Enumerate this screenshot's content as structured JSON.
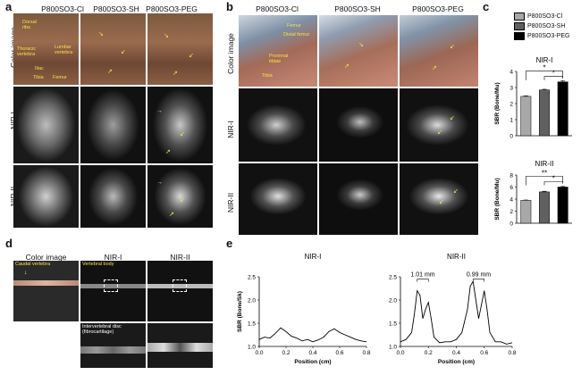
{
  "panel_a": {
    "letter": "a",
    "columns": [
      "P800SO3-Cl",
      "P800SO3-SH",
      "P800SO3-PEG"
    ],
    "rows": [
      "Color image",
      "NIR-I",
      "NIR-II"
    ],
    "annotations": [
      "Dorsal ribs",
      "Thoracic vertebra",
      "Lumbar vertebra",
      "Iliac",
      "Tibia",
      "Femur"
    ]
  },
  "panel_b": {
    "letter": "b",
    "columns": [
      "P800SO3-Cl",
      "P800SO3-SH",
      "P800SO3-PEG"
    ],
    "rows": [
      "Color image",
      "NIR-I",
      "NIR-II"
    ],
    "annotations": [
      "Femur",
      "Distal femur",
      "Proximal tibiae",
      "Tibia"
    ]
  },
  "panel_c": {
    "letter": "c",
    "legend": [
      "P800SO3-Cl",
      "P800SO3-SH",
      "P800SO3-PEG"
    ],
    "colors": [
      "#a8a8a8",
      "#606060",
      "#000000"
    ]
  },
  "panel_d": {
    "letter": "d",
    "columns": [
      "Color image",
      "NIR-I",
      "NIR-II"
    ],
    "annotations": [
      "Caudal vertebra",
      "Vertebral body",
      "Intervertebral disc (fibrocartilage)"
    ]
  },
  "panel_e": {
    "letter": "e"
  },
  "chart_data": [
    {
      "type": "bar",
      "title": "NIR-I",
      "categories": [
        "P800SO3-Cl",
        "P800SO3-SH",
        "P800SO3-PEG"
      ],
      "values": [
        2.45,
        2.85,
        3.35
      ],
      "errors": [
        0.03,
        0.04,
        0.08
      ],
      "ylabel": "SBR (Bone/Mu)",
      "ylim": [
        0,
        4
      ],
      "yticks": [
        0,
        1,
        2,
        3,
        4
      ],
      "significance": [
        "*",
        "*"
      ]
    },
    {
      "type": "bar",
      "title": "NIR-II",
      "categories": [
        "P800SO3-Cl",
        "P800SO3-SH",
        "P800SO3-PEG"
      ],
      "values": [
        3.8,
        5.2,
        6.0
      ],
      "errors": [
        0.05,
        0.1,
        0.1
      ],
      "ylabel": "SBR (Bone/Mu)",
      "ylim": [
        0,
        8
      ],
      "yticks": [
        0,
        2,
        4,
        6,
        8
      ],
      "significance": [
        "**",
        "*"
      ]
    },
    {
      "type": "line",
      "title": "NIR-I",
      "xlabel": "Position (cm)",
      "ylabel": "SBR (Bone/Sk)",
      "xlim": [
        0,
        0.8
      ],
      "ylim": [
        1.0,
        2.5
      ],
      "xticks": [
        0.0,
        0.2,
        0.4,
        0.6,
        0.8
      ],
      "yticks": [
        1.0,
        1.5,
        2.0,
        2.5
      ],
      "x": [
        0.0,
        0.04,
        0.08,
        0.12,
        0.16,
        0.2,
        0.24,
        0.28,
        0.32,
        0.36,
        0.4,
        0.44,
        0.48,
        0.52,
        0.56,
        0.6,
        0.64,
        0.68,
        0.72,
        0.76,
        0.8
      ],
      "y": [
        1.15,
        1.2,
        1.18,
        1.28,
        1.4,
        1.32,
        1.22,
        1.18,
        1.12,
        1.15,
        1.1,
        1.14,
        1.2,
        1.32,
        1.38,
        1.3,
        1.25,
        1.2,
        1.15,
        1.12,
        1.1
      ]
    },
    {
      "type": "line",
      "title": "NIR-II",
      "xlabel": "Position (cm)",
      "xlim": [
        0,
        0.8
      ],
      "ylim": [
        1.0,
        2.5
      ],
      "xticks": [
        0.0,
        0.2,
        0.4,
        0.6,
        0.8
      ],
      "yticks": [
        1.0,
        1.5,
        2.0,
        2.5
      ],
      "annotations": [
        "1.01 mm",
        "0.99 mm"
      ],
      "x": [
        0.0,
        0.04,
        0.08,
        0.1,
        0.12,
        0.14,
        0.16,
        0.18,
        0.2,
        0.22,
        0.24,
        0.28,
        0.32,
        0.36,
        0.4,
        0.44,
        0.48,
        0.5,
        0.52,
        0.54,
        0.56,
        0.58,
        0.6,
        0.62,
        0.64,
        0.68,
        0.72,
        0.76,
        0.8
      ],
      "y": [
        1.1,
        1.15,
        1.3,
        1.7,
        2.2,
        2.1,
        1.6,
        1.8,
        1.95,
        1.6,
        1.2,
        1.08,
        1.1,
        1.1,
        1.15,
        1.3,
        1.8,
        2.3,
        2.4,
        2.0,
        1.6,
        1.9,
        2.2,
        1.8,
        1.3,
        1.1,
        1.1,
        1.05,
        1.08
      ]
    }
  ]
}
